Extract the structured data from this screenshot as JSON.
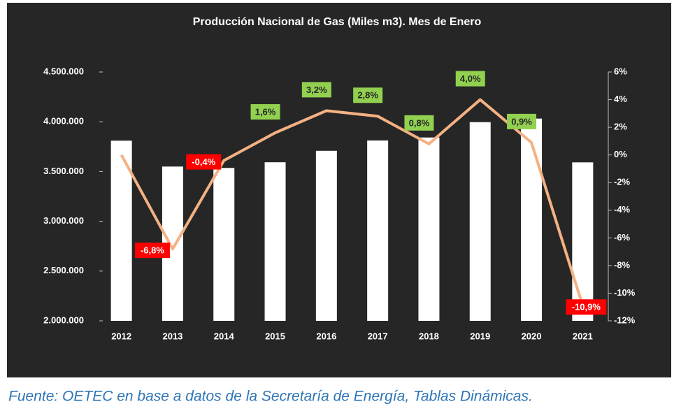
{
  "chart_data": {
    "type": "bar-line",
    "title": "Producción Nacional de Gas (Miles m3). Mes de Enero",
    "source": "Fuente: OETEC en base a datos de la Secretaría de Energía, Tablas Dinámicas.",
    "categories": [
      "2012",
      "2013",
      "2014",
      "2015",
      "2016",
      "2017",
      "2018",
      "2019",
      "2020",
      "2021"
    ],
    "series": [
      {
        "type": "bar",
        "color": "#ffffff",
        "values": [
          3810000,
          3550000,
          3536000,
          3593000,
          3708000,
          3812000,
          3842000,
          3996000,
          4032000,
          3592000
        ]
      },
      {
        "type": "line",
        "axis": "y2",
        "color": "#f4b183",
        "values": [
          0,
          -6.8,
          -0.4,
          1.6,
          3.2,
          2.8,
          0.8,
          4.0,
          0.9,
          -10.9
        ],
        "value_labels": [
          null,
          "-6,8%",
          "-0,4%",
          "1,6%",
          "3,2%",
          "2,8%",
          "0,8%",
          "4,0%",
          "0,9%",
          "-10,9%"
        ]
      }
    ],
    "positive_label_color": "#92d050",
    "negative_label_color": "#ff0000",
    "background": "#262626",
    "ylim": [
      2000000,
      4500000
    ],
    "yticks": [
      {
        "value": 2000000,
        "label": "2.000.000"
      },
      {
        "value": 2500000,
        "label": "2.500.000"
      },
      {
        "value": 3000000,
        "label": "3.000.000"
      },
      {
        "value": 3500000,
        "label": "3.500.000"
      },
      {
        "value": 4000000,
        "label": "4.000.000"
      },
      {
        "value": 4500000,
        "label": "4.500.000"
      }
    ],
    "y2lim": [
      -12,
      6
    ],
    "y2ticks": [
      {
        "value": -12,
        "label": "-12%"
      },
      {
        "value": -10,
        "label": "-10%"
      },
      {
        "value": -8,
        "label": "-8%"
      },
      {
        "value": -6,
        "label": "-6%"
      },
      {
        "value": -4,
        "label": "-4%"
      },
      {
        "value": -2,
        "label": "-2%"
      },
      {
        "value": 0,
        "label": "0%"
      },
      {
        "value": 2,
        "label": "2%"
      },
      {
        "value": 4,
        "label": "4%"
      },
      {
        "value": 6,
        "label": "6%"
      }
    ]
  }
}
